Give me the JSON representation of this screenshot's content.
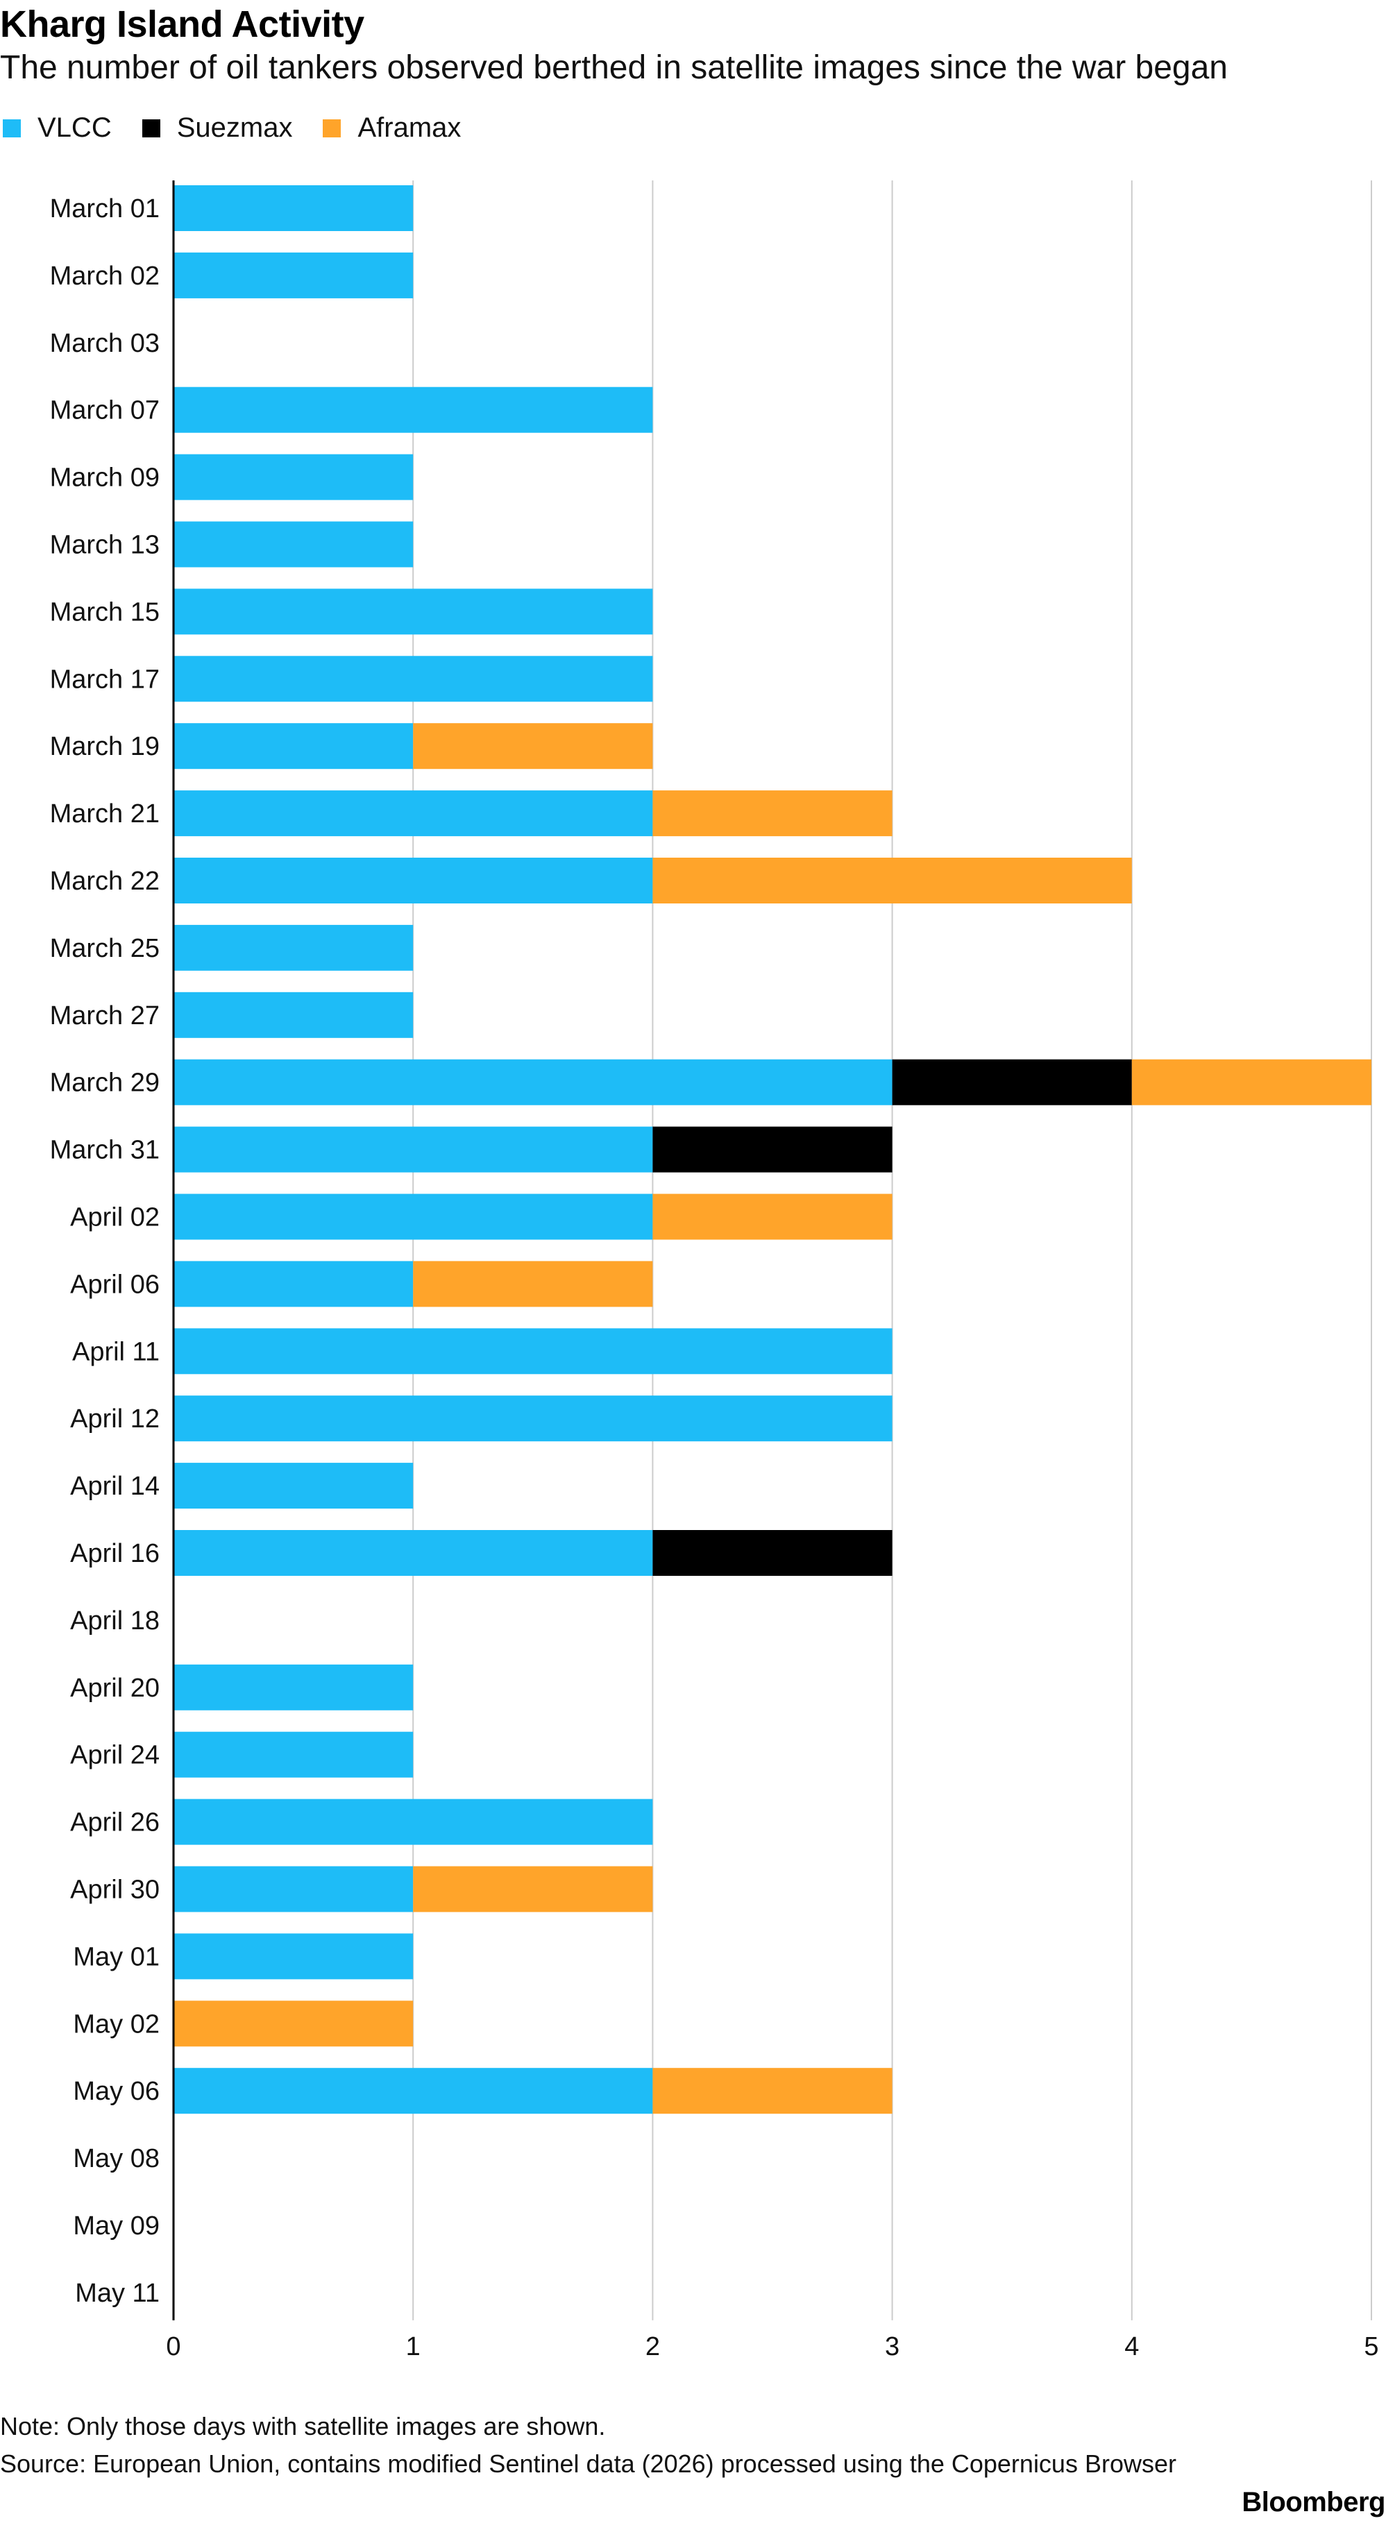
{
  "header": {
    "title": "Kharg Island Activity",
    "subtitle": "The number of oil tankers observed berthed in satellite images since the war began"
  },
  "legend": [
    {
      "label": "VLCC",
      "color": "#1EBCF7"
    },
    {
      "label": "Suezmax",
      "color": "#000000"
    },
    {
      "label": "Aframax",
      "color": "#FFA42A"
    }
  ],
  "chart_data": {
    "type": "bar",
    "orientation": "horizontal",
    "stacked": true,
    "title": "Kharg Island Activity",
    "subtitle": "The number of oil tankers observed berthed in satellite images since the war began",
    "xlabel": "",
    "ylabel": "",
    "xlim": [
      0,
      5
    ],
    "xticks": [
      0,
      1,
      2,
      3,
      4,
      5
    ],
    "grid": true,
    "legend_position": "top-left",
    "categories": [
      "March 01",
      "March 02",
      "March 03",
      "March 07",
      "March 09",
      "March 13",
      "March 15",
      "March 17",
      "March 19",
      "March 21",
      "March 22",
      "March 25",
      "March 27",
      "March 29",
      "March 31",
      "April 02",
      "April 06",
      "April 11",
      "April 12",
      "April 14",
      "April 16",
      "April 18",
      "April 20",
      "April 24",
      "April 26",
      "April 30",
      "May 01",
      "May 02",
      "May 06",
      "May 08",
      "May 09",
      "May 11"
    ],
    "series": [
      {
        "name": "VLCC",
        "color": "#1EBCF7",
        "values": [
          1,
          1,
          0,
          2,
          1,
          1,
          2,
          2,
          1,
          2,
          2,
          1,
          1,
          3,
          2,
          2,
          1,
          3,
          3,
          1,
          2,
          0,
          1,
          1,
          2,
          1,
          1,
          0,
          2,
          0,
          0,
          0
        ]
      },
      {
        "name": "Suezmax",
        "color": "#000000",
        "values": [
          0,
          0,
          0,
          0,
          0,
          0,
          0,
          0,
          0,
          0,
          0,
          0,
          0,
          1,
          1,
          0,
          0,
          0,
          0,
          0,
          1,
          0,
          0,
          0,
          0,
          0,
          0,
          0,
          0,
          0,
          0,
          0
        ]
      },
      {
        "name": "Aframax",
        "color": "#FFA42A",
        "values": [
          0,
          0,
          0,
          0,
          0,
          0,
          0,
          0,
          1,
          1,
          2,
          0,
          0,
          1,
          0,
          1,
          1,
          0,
          0,
          0,
          0,
          0,
          0,
          0,
          0,
          1,
          0,
          1,
          1,
          0,
          0,
          0
        ]
      }
    ]
  },
  "footer": {
    "note": "Note: Only those days with satellite images are shown.",
    "source": "Source: European Union, contains modified Sentinel data (2026) processed using the Copernicus Browser",
    "brand": "Bloomberg"
  }
}
